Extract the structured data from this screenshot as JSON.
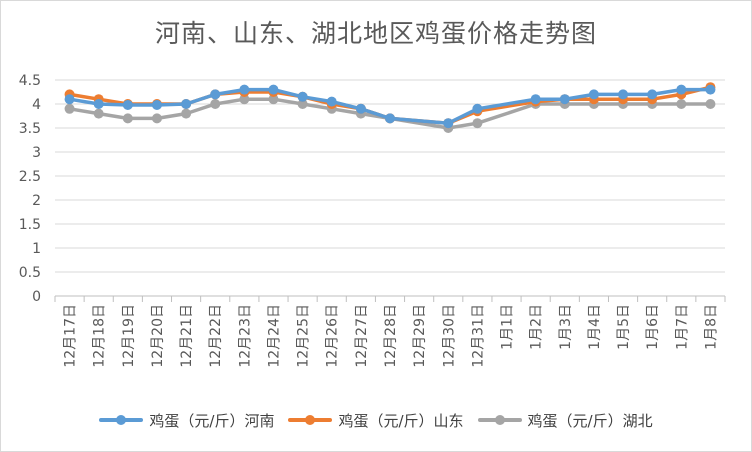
{
  "chart_data": {
    "type": "line",
    "title": "河南、山东、湖北地区鸡蛋价格走势图",
    "xlabel": "",
    "ylabel": "",
    "ylim": [
      0,
      4.5
    ],
    "yticks": [
      "0",
      "0.5",
      "1",
      "1.5",
      "2",
      "2.5",
      "3",
      "3.5",
      "4",
      "4.5"
    ],
    "grid": true,
    "legend": "bottom",
    "categories": [
      "12月17日",
      "12月18日",
      "12月19日",
      "12月20日",
      "12月21日",
      "12月22日",
      "12月23日",
      "12月24日",
      "12月25日",
      "12月26日",
      "12月27日",
      "12月28日",
      "12月29日",
      "12月30日",
      "12月31日",
      "1月1日",
      "1月2日",
      "1月3日",
      "1月4日",
      "1月5日",
      "1月6日",
      "1月7日",
      "1月8日"
    ],
    "series": [
      {
        "name": "鸡蛋（元/斤）河南",
        "color": "#5b9bd5",
        "values": [
          4.1,
          4.0,
          3.98,
          3.98,
          4.0,
          4.2,
          4.3,
          4.3,
          4.15,
          4.05,
          3.9,
          3.7,
          null,
          3.6,
          3.9,
          null,
          4.1,
          4.1,
          4.2,
          4.2,
          4.2,
          4.3,
          4.3
        ]
      },
      {
        "name": "鸡蛋（元/斤）山东",
        "color": "#ed7d31",
        "values": [
          4.2,
          4.1,
          4.0,
          4.0,
          4.0,
          4.2,
          4.25,
          4.25,
          4.15,
          4.0,
          3.9,
          3.7,
          null,
          3.6,
          3.85,
          null,
          4.05,
          4.1,
          4.1,
          4.1,
          4.1,
          4.2,
          4.35
        ]
      },
      {
        "name": "鸡蛋（元/斤）湖北",
        "color": "#a5a5a5",
        "values": [
          3.9,
          3.8,
          3.7,
          3.7,
          3.8,
          4.0,
          4.1,
          4.1,
          4.0,
          3.9,
          3.8,
          3.7,
          null,
          3.5,
          3.6,
          null,
          4.0,
          4.0,
          4.0,
          4.0,
          4.0,
          4.0,
          4.0
        ]
      }
    ]
  }
}
